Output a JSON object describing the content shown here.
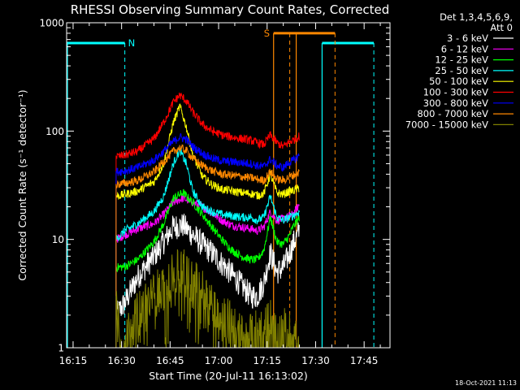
{
  "chart_data": {
    "type": "line",
    "title": "RHESSI Observing Summary Count Rates, Corrected",
    "xlabel": "Start Time (20-Jul-11 16:13:02)",
    "ylabel": "Corrected Count Rate (s⁻¹ detector⁻¹)",
    "y_scale": "log",
    "ylim": [
      1,
      1000
    ],
    "xlim": [
      "16:13",
      "17:53"
    ],
    "x_ticks": [
      "16:15",
      "16:30",
      "16:45",
      "17:00",
      "17:15",
      "17:30",
      "17:45"
    ],
    "y_ticks": [
      "1",
      "10",
      "100",
      "1000"
    ],
    "x_tick_minutes": [
      975,
      990,
      1005,
      1020,
      1035,
      1050,
      1065
    ],
    "x_min_minutes": 973,
    "x_max_minutes": 1073,
    "legend": {
      "placement": "right",
      "header": [
        "Det 1,3,4,5,6,9,",
        "Att 0"
      ]
    },
    "footer_timestamp": "18-Oct-2021 11:13",
    "flags": [
      {
        "label": "N",
        "color": "#00ffff",
        "start": "16:13",
        "end": "16:31",
        "level": 650,
        "solid_line": "16:13",
        "dashed_line": "16:31"
      },
      {
        "label": "",
        "color": "#00ffff",
        "start": "17:32",
        "end": "17:48",
        "level": 650,
        "solid_line": "17:32",
        "dashed_line": "17:48"
      },
      {
        "label": "S",
        "color": "#ff8800",
        "start": "17:17",
        "end": "17:36",
        "level": 800,
        "solid_lines": [
          "17:17",
          "17:24"
        ],
        "dashed_lines": [
          "17:22",
          "17:36"
        ]
      }
    ],
    "series": [
      {
        "name": "3 - 6 keV",
        "color": "#ffffff",
        "x": [
          988.3,
          991,
          995,
          1000,
          1003,
          1006,
          1009,
          1012,
          1015,
          1018,
          1021,
          1024,
          1027,
          1030,
          1032,
          1034,
          1036,
          1038,
          1040,
          1042,
          1043,
          1045
        ],
        "y": [
          2.0,
          2.6,
          4.5,
          7.0,
          9.5,
          13.0,
          13.5,
          11.0,
          9.0,
          7.5,
          6.0,
          4.8,
          3.8,
          3.0,
          3.0,
          4.0,
          7.5,
          5.0,
          5.5,
          7.5,
          9.0,
          12.0
        ]
      },
      {
        "name": "6 - 12 keV",
        "color": "#ff00ff",
        "x": [
          988.3,
          991,
          995,
          1000,
          1003,
          1006,
          1009,
          1012,
          1015,
          1018,
          1021,
          1024,
          1027,
          1030,
          1032,
          1034,
          1036,
          1038,
          1040,
          1042,
          1043,
          1045
        ],
        "y": [
          10.0,
          11.0,
          12.5,
          14.0,
          17.0,
          22.0,
          24.0,
          22.0,
          20.0,
          17.5,
          15.0,
          13.5,
          13.0,
          12.5,
          12.0,
          13.0,
          18.0,
          15.0,
          15.5,
          16.5,
          17.0,
          21.0
        ]
      },
      {
        "name": "12 - 25 keV",
        "color": "#00ff00",
        "x": [
          988.3,
          991,
          995,
          1000,
          1003,
          1006,
          1009,
          1012,
          1015,
          1018,
          1021,
          1024,
          1027,
          1030,
          1032,
          1034,
          1036,
          1038,
          1040,
          1042,
          1043,
          1045
        ],
        "y": [
          5.5,
          5.6,
          6.5,
          9.5,
          14.0,
          24.0,
          27.0,
          22.0,
          17.0,
          13.0,
          10.0,
          8.0,
          7.0,
          6.5,
          6.5,
          8.0,
          16.0,
          9.5,
          9.0,
          11.0,
          13.0,
          16.0
        ]
      },
      {
        "name": "25 - 50 keV",
        "color": "#00ffff",
        "x": [
          988.3,
          991,
          995,
          1000,
          1003,
          1006,
          1008,
          1010,
          1012,
          1015,
          1018,
          1021,
          1024,
          1027,
          1030,
          1032,
          1034,
          1036,
          1038,
          1040,
          1042,
          1043,
          1045
        ],
        "y": [
          10.0,
          12.0,
          14.0,
          18.0,
          25.0,
          50.0,
          67.0,
          50.0,
          28.0,
          20.0,
          18.0,
          17.0,
          16.5,
          16.0,
          16.0,
          15.0,
          16.0,
          25.0,
          16.0,
          15.0,
          16.0,
          16.5,
          18.0
        ]
      },
      {
        "name": "50 - 100 keV",
        "color": "#ffff00",
        "x": [
          988.3,
          991,
          995,
          1000,
          1003,
          1006,
          1008,
          1010,
          1012,
          1015,
          1018,
          1021,
          1024,
          1027,
          1030,
          1032,
          1034,
          1036,
          1038,
          1040,
          1042,
          1043,
          1045
        ],
        "y": [
          25.0,
          26.0,
          28.0,
          34.0,
          50.0,
          120.0,
          170.0,
          110.0,
          60.0,
          38.0,
          32.0,
          29.0,
          28.0,
          27.0,
          26.5,
          25.5,
          26.5,
          40.0,
          27.0,
          26.0,
          28.0,
          28.0,
          30.0
        ]
      },
      {
        "name": "100 - 300 keV",
        "color": "#ff0000",
        "x": [
          988.3,
          991,
          995,
          1000,
          1003,
          1006,
          1008,
          1010,
          1012,
          1015,
          1018,
          1021,
          1024,
          1027,
          1030,
          1032,
          1034,
          1036,
          1038,
          1040,
          1042,
          1043,
          1045
        ],
        "y": [
          58.0,
          60.0,
          65.0,
          85.0,
          120.0,
          185.0,
          215.0,
          190.0,
          150.0,
          115.0,
          100.0,
          92.0,
          88.0,
          85.0,
          82.0,
          78.0,
          75.0,
          92.0,
          78.0,
          72.0,
          80.0,
          82.0,
          90.0
        ]
      },
      {
        "name": "300 - 800 keV",
        "color": "#0000ff",
        "x": [
          988.3,
          991,
          995,
          1000,
          1003,
          1006,
          1008,
          1010,
          1012,
          1015,
          1018,
          1021,
          1024,
          1027,
          1030,
          1032,
          1034,
          1036,
          1038,
          1040,
          1042,
          1043,
          1045
        ],
        "y": [
          42.0,
          43.0,
          46.0,
          54.0,
          65.0,
          80.0,
          88.0,
          84.0,
          72.0,
          62.0,
          56.0,
          53.0,
          52.0,
          51.0,
          50.0,
          48.0,
          47.0,
          55.0,
          48.0,
          46.0,
          52.0,
          53.0,
          60.0
        ]
      },
      {
        "name": "800 - 7000 keV",
        "color": "#ff8800",
        "x": [
          988.3,
          991,
          995,
          1000,
          1003,
          1006,
          1008,
          1010,
          1012,
          1015,
          1018,
          1021,
          1024,
          1027,
          1030,
          1032,
          1034,
          1036,
          1038,
          1040,
          1042,
          1043,
          1045
        ],
        "y": [
          32.0,
          33.0,
          35.0,
          42.0,
          52.0,
          65.0,
          70.0,
          66.0,
          56.0,
          48.0,
          43.0,
          40.0,
          39.0,
          38.0,
          37.0,
          36.0,
          35.0,
          42.0,
          36.0,
          35.0,
          38.0,
          39.0,
          42.0
        ]
      },
      {
        "name": "7000 - 15000 keV",
        "color": "#808000",
        "x": [
          988.3,
          990,
          992,
          994,
          996,
          998,
          1000,
          1002,
          1004,
          1006,
          1008,
          1010,
          1012,
          1014,
          1016,
          1018,
          1020,
          1022,
          1024,
          1026,
          1028,
          1030,
          1032,
          1034,
          1036,
          1038,
          1040,
          1042,
          1043,
          1045
        ],
        "y": [
          3.0,
          1.1,
          1.4,
          1.8,
          2.2,
          2.6,
          3.0,
          3.5,
          4.0,
          4.7,
          5.0,
          4.8,
          4.2,
          3.6,
          3.0,
          2.6,
          2.3,
          2.0,
          1.6,
          1.3,
          1.2,
          1.3,
          1.6,
          1.4,
          1.8,
          1.2,
          1.5,
          1.3,
          1.4,
          1.2
        ]
      }
    ]
  }
}
